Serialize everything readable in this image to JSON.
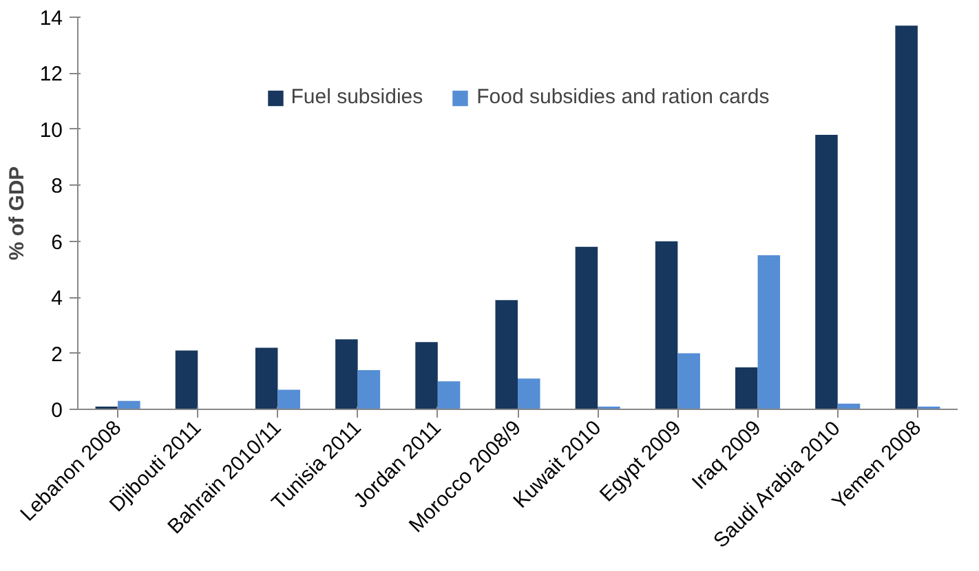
{
  "chart_data": {
    "type": "bar",
    "ylabel": "% of GDP",
    "categories": [
      "Lebanon 2008",
      "Djibouti 2011",
      "Bahrain 2010/11",
      "Tunisia 2011",
      "Jordan 2011",
      "Morocco 2008/9",
      "Kuwait 2010",
      "Egypt 2009",
      "Iraq 2009",
      "Saudi Arabia 2010",
      "Yemen 2008"
    ],
    "series": [
      {
        "name": "Fuel subsidies",
        "color": "#17375e",
        "values": [
          0.1,
          2.1,
          2.2,
          2.5,
          2.4,
          3.9,
          5.8,
          6.0,
          1.5,
          9.8,
          13.7
        ]
      },
      {
        "name": "Food subsidies and ration cards",
        "color": "#558ed5",
        "values": [
          0.3,
          0,
          0.7,
          1.4,
          1.0,
          1.1,
          0.1,
          2.0,
          5.5,
          0.2,
          0.1
        ]
      }
    ],
    "ylim": [
      0,
      14
    ],
    "yticks": [
      0,
      2,
      4,
      6,
      8,
      10,
      12,
      14
    ],
    "grid": false,
    "legend": "top"
  }
}
